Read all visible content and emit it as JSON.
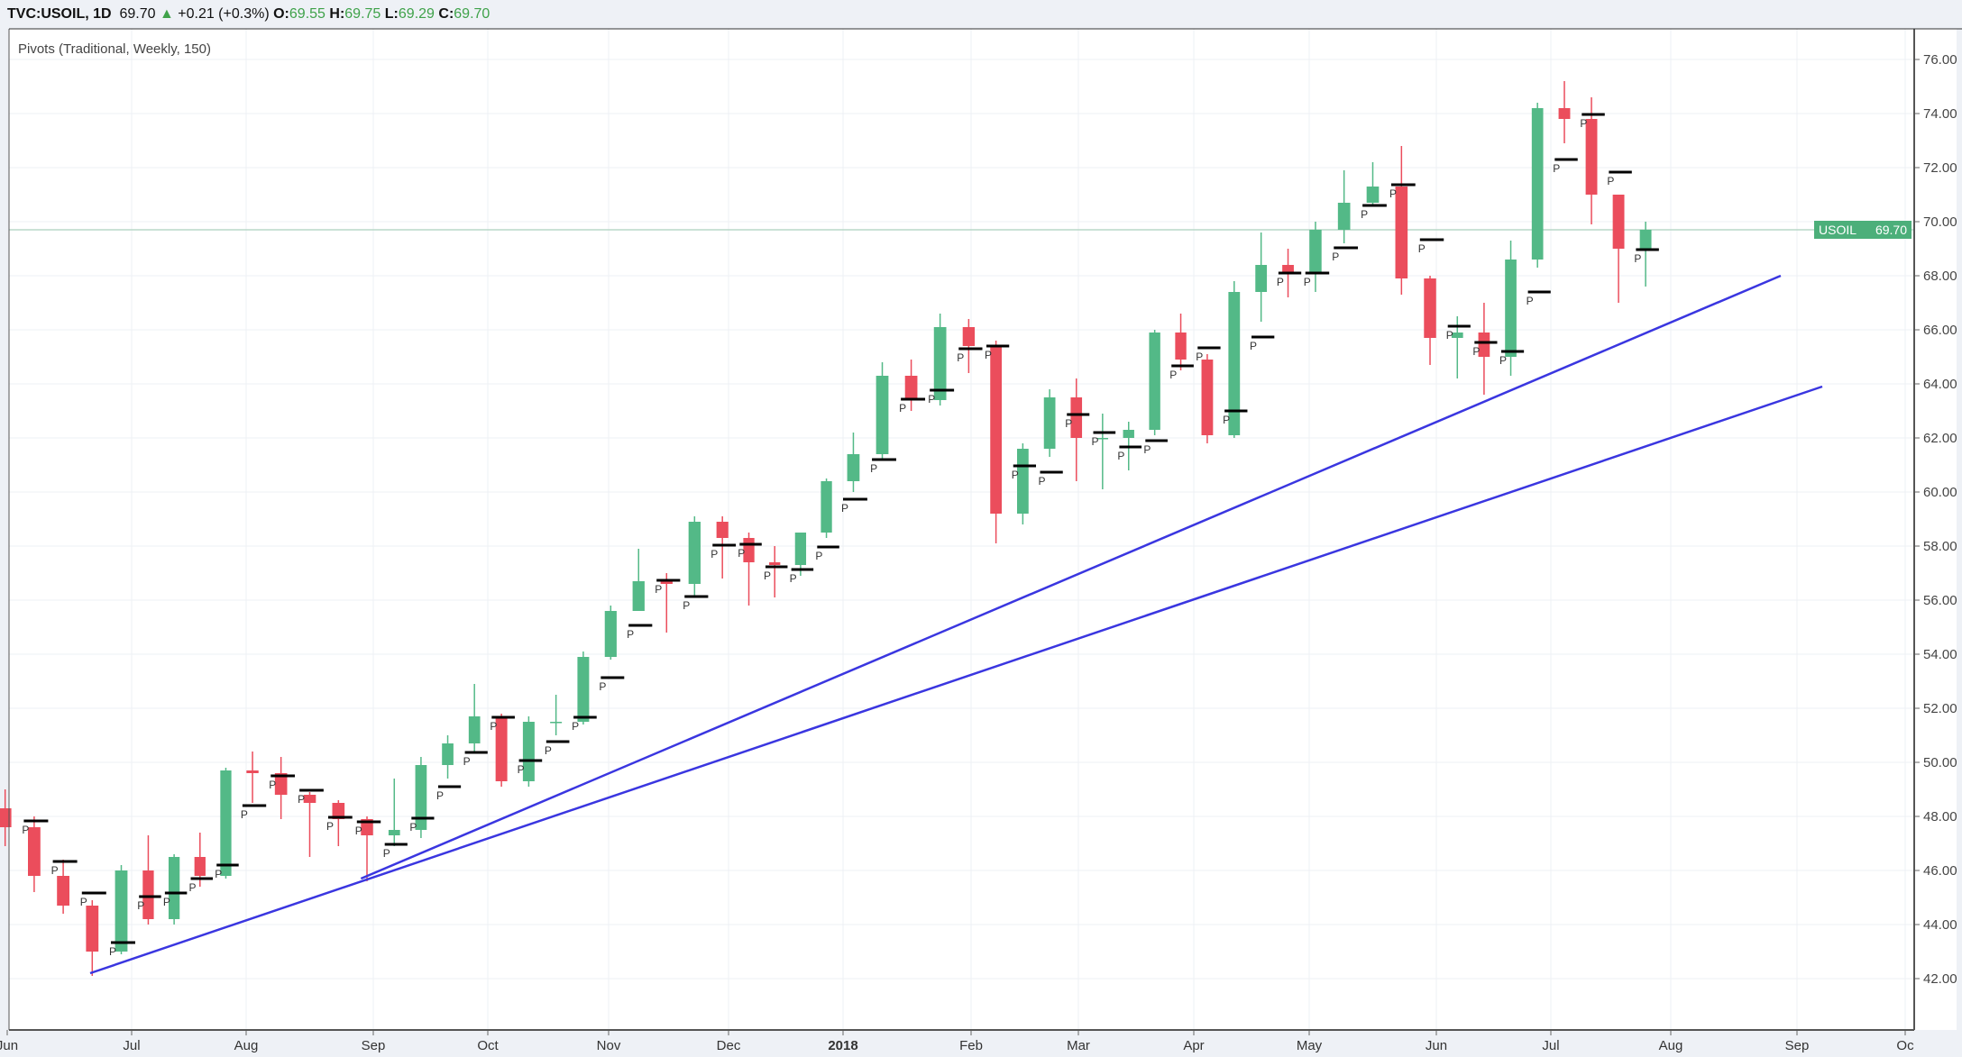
{
  "header": {
    "symbol": "TVC:USOIL, 1D",
    "last": "69.70",
    "change_icon": "triangle-up-icon",
    "change": "+0.21 (+0.3%)",
    "open_label": "O:",
    "open": "69.55",
    "high_label": "H:",
    "high": "69.75",
    "low_label": "L:",
    "low": "69.29",
    "close_label": "C:",
    "close": "69.70"
  },
  "indicator_label": "Pivots (Traditional, Weekly, 150)",
  "price_label": {
    "symbol": "USOIL",
    "value": "69.70",
    "price": 69.7,
    "color": "#4caf7a"
  },
  "colors": {
    "up": "#53b987",
    "down": "#eb4d5c",
    "pivot": "#000000",
    "trendline": "#3a36e0",
    "grid": "#eef0f4"
  },
  "chart_data": {
    "type": "candlestick",
    "title": "",
    "y_ticks": [
      "42.00",
      "44.00",
      "46.00",
      "48.00",
      "50.00",
      "52.00",
      "54.00",
      "56.00",
      "58.00",
      "60.00",
      "62.00",
      "64.00",
      "66.00",
      "68.00",
      "70.00",
      "72.00",
      "74.00",
      "76.00"
    ],
    "ylim": [
      41,
      77
    ],
    "x_ticks": [
      {
        "label": "Jun",
        "date": "2017-06-01"
      },
      {
        "label": "Jul",
        "date": "2017-07-01"
      },
      {
        "label": "Aug",
        "date": "2017-08-01"
      },
      {
        "label": "Sep",
        "date": "2017-09-01"
      },
      {
        "label": "Oct",
        "date": "2017-10-01"
      },
      {
        "label": "Nov",
        "date": "2017-11-01"
      },
      {
        "label": "Dec",
        "date": "2017-12-01"
      },
      {
        "label": "2018",
        "date": "2018-01-01",
        "bold": true
      },
      {
        "label": "Feb",
        "date": "2018-02-01"
      },
      {
        "label": "Mar",
        "date": "2018-03-01"
      },
      {
        "label": "Apr",
        "date": "2018-04-01"
      },
      {
        "label": "May",
        "date": "2018-05-01"
      },
      {
        "label": "Jun",
        "date": "2018-06-01"
      },
      {
        "label": "Jul",
        "date": "2018-07-01"
      },
      {
        "label": "Aug",
        "date": "2018-08-01"
      },
      {
        "label": "Sep",
        "date": "2018-09-01"
      },
      {
        "label": "Oc",
        "date": "2018-10-01"
      }
    ],
    "grid": true,
    "candles": [
      [
        "2017-05-29",
        48.3,
        49.0,
        46.9,
        47.6
      ],
      [
        "2017-06-05",
        47.6,
        48.0,
        45.2,
        45.8
      ],
      [
        "2017-06-12",
        45.8,
        46.4,
        44.4,
        44.7
      ],
      [
        "2017-06-19",
        44.7,
        44.9,
        42.1,
        43.0
      ],
      [
        "2017-06-26",
        43.0,
        46.2,
        42.9,
        46.0
      ],
      [
        "2017-07-03",
        46.0,
        47.3,
        44.0,
        44.2
      ],
      [
        "2017-07-10",
        44.2,
        46.6,
        44.0,
        46.5
      ],
      [
        "2017-07-17",
        46.5,
        47.4,
        45.4,
        45.8
      ],
      [
        "2017-07-24",
        45.8,
        49.8,
        45.7,
        49.7
      ],
      [
        "2017-07-31",
        49.7,
        50.4,
        48.5,
        49.6
      ],
      [
        "2017-08-07",
        49.6,
        50.2,
        47.9,
        48.8
      ],
      [
        "2017-08-14",
        48.8,
        48.9,
        46.5,
        48.5
      ],
      [
        "2017-08-21",
        48.5,
        48.6,
        46.9,
        47.9
      ],
      [
        "2017-08-28",
        47.9,
        48.0,
        45.6,
        47.3
      ],
      [
        "2017-09-04",
        47.3,
        49.4,
        46.9,
        47.5
      ],
      [
        "2017-09-11",
        47.5,
        50.2,
        47.2,
        49.9
      ],
      [
        "2017-09-18",
        49.9,
        51.0,
        49.4,
        50.7
      ],
      [
        "2017-09-25",
        50.7,
        52.9,
        50.4,
        51.7
      ],
      [
        "2017-10-02",
        51.7,
        51.8,
        49.1,
        49.3
      ],
      [
        "2017-10-09",
        49.3,
        51.7,
        49.1,
        51.5
      ],
      [
        "2017-10-16",
        51.5,
        52.5,
        51.0,
        51.5
      ],
      [
        "2017-10-23",
        51.5,
        54.1,
        51.4,
        53.9
      ],
      [
        "2017-10-30",
        53.9,
        55.8,
        53.8,
        55.6
      ],
      [
        "2017-11-06",
        55.6,
        57.9,
        55.6,
        56.7
      ],
      [
        "2017-11-13",
        56.7,
        57.0,
        54.8,
        56.6
      ],
      [
        "2017-11-20",
        56.6,
        59.1,
        56.1,
        58.9
      ],
      [
        "2017-11-27",
        58.9,
        59.1,
        56.8,
        58.3
      ],
      [
        "2017-12-04",
        58.3,
        58.5,
        55.8,
        57.4
      ],
      [
        "2017-12-11",
        57.4,
        58.0,
        56.1,
        57.3
      ],
      [
        "2017-12-18",
        57.3,
        58.5,
        56.9,
        58.5
      ],
      [
        "2017-12-25",
        58.5,
        60.5,
        58.3,
        60.4
      ],
      [
        "2018-01-01",
        60.4,
        62.2,
        60.0,
        61.4
      ],
      [
        "2018-01-08",
        61.4,
        64.8,
        61.2,
        64.3
      ],
      [
        "2018-01-15",
        64.3,
        64.9,
        63.0,
        63.4
      ],
      [
        "2018-01-22",
        63.4,
        66.6,
        63.2,
        66.1
      ],
      [
        "2018-01-29",
        66.1,
        66.4,
        64.4,
        65.4
      ],
      [
        "2018-02-05",
        65.4,
        65.6,
        58.1,
        59.2
      ],
      [
        "2018-02-12",
        59.2,
        61.8,
        58.8,
        61.6
      ],
      [
        "2018-02-19",
        61.6,
        63.8,
        61.3,
        63.5
      ],
      [
        "2018-02-26",
        63.5,
        64.2,
        60.4,
        62.0
      ],
      [
        "2018-03-05",
        62.0,
        62.9,
        60.1,
        62.0
      ],
      [
        "2018-03-12",
        62.0,
        62.6,
        60.8,
        62.3
      ],
      [
        "2018-03-19",
        62.3,
        66.0,
        62.1,
        65.9
      ],
      [
        "2018-03-26",
        65.9,
        66.6,
        64.5,
        64.9
      ],
      [
        "2018-04-02",
        64.9,
        65.1,
        61.8,
        62.1
      ],
      [
        "2018-04-09",
        62.1,
        67.8,
        62.0,
        67.4
      ],
      [
        "2018-04-16",
        67.4,
        69.6,
        66.3,
        68.4
      ],
      [
        "2018-04-23",
        68.4,
        69.0,
        67.2,
        68.1
      ],
      [
        "2018-04-30",
        68.1,
        70.0,
        67.4,
        69.7
      ],
      [
        "2018-05-07",
        69.7,
        71.9,
        69.2,
        70.7
      ],
      [
        "2018-05-14",
        70.7,
        72.2,
        70.6,
        71.3
      ],
      [
        "2018-05-21",
        71.3,
        72.8,
        67.3,
        67.9
      ],
      [
        "2018-05-28",
        67.9,
        68.0,
        64.7,
        65.7
      ],
      [
        "2018-06-04",
        65.7,
        66.5,
        64.2,
        65.9
      ],
      [
        "2018-06-11",
        65.9,
        67.0,
        63.6,
        65.0
      ],
      [
        "2018-06-18",
        65.0,
        69.3,
        64.3,
        68.6
      ],
      [
        "2018-06-25",
        68.6,
        74.4,
        68.3,
        74.2
      ],
      [
        "2018-07-02",
        74.2,
        75.2,
        72.9,
        73.8
      ],
      [
        "2018-07-09",
        73.8,
        74.6,
        69.9,
        71.0
      ],
      [
        "2018-07-16",
        71.0,
        70.9,
        67.0,
        69.0
      ],
      [
        "2018-07-23",
        69.0,
        70.0,
        67.6,
        69.7
      ]
    ],
    "pivot_label": "P",
    "trendlines": [
      {
        "from": [
          "2017-08-29",
          45.7
        ],
        "to": [
          "2018-08-28",
          68.0
        ]
      },
      {
        "from": [
          "2017-06-21",
          42.2
        ],
        "to": [
          "2018-09-08",
          63.9
        ]
      }
    ]
  }
}
